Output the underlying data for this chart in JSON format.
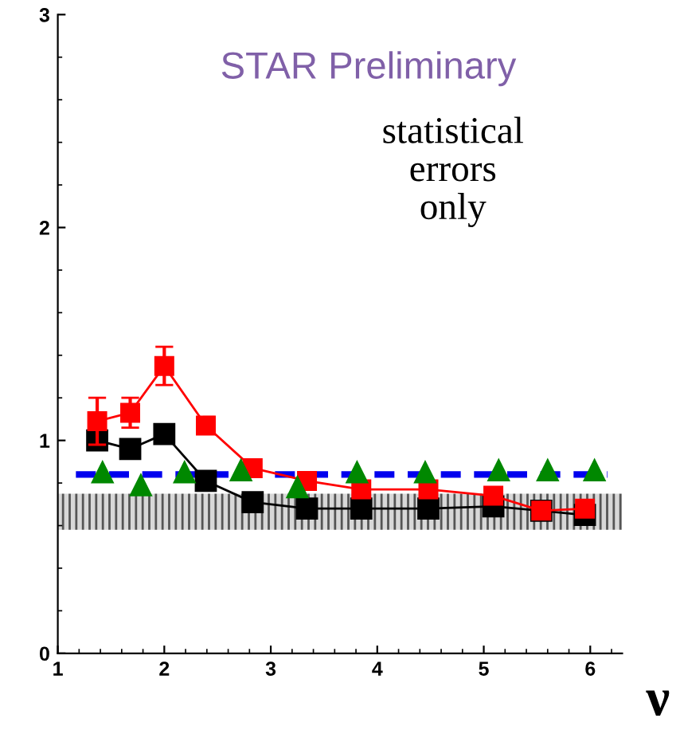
{
  "chart_data": {
    "type": "scatter",
    "title": "STAR Preliminary",
    "xlabel": "ν",
    "annotations": [
      "statistical\nerrors\nonly"
    ],
    "xlim": [
      1,
      6.3
    ],
    "ylim": [
      0,
      3
    ],
    "xticks": [
      1,
      2,
      3,
      4,
      5,
      6
    ],
    "yticks": [
      0,
      1,
      2,
      3
    ],
    "grid": false,
    "bands": [
      {
        "axis": "y",
        "from": 0.58,
        "to": 0.75,
        "color": "#555555"
      }
    ],
    "series": [
      {
        "type": "line",
        "color": "#0000ee",
        "line_style": "dashed",
        "marker": "none",
        "x": [
          1.17,
          6.16
        ],
        "values": [
          0.84,
          0.84
        ]
      },
      {
        "type": "line",
        "color": "#000000",
        "marker": "square",
        "line_style": "solid",
        "x": [
          1.37,
          1.68,
          2.0,
          2.39,
          2.83,
          3.34,
          3.85,
          4.48,
          5.09,
          5.54,
          5.95
        ],
        "values": [
          1.0,
          0.96,
          1.03,
          0.81,
          0.71,
          0.68,
          0.68,
          0.68,
          0.69,
          0.67,
          0.65
        ]
      },
      {
        "type": "line",
        "color": "#ff0000",
        "marker": "square",
        "line_style": "solid",
        "x": [
          1.37,
          1.68,
          2.0,
          2.39,
          2.83,
          3.34,
          3.85,
          4.48,
          5.09,
          5.54,
          5.95
        ],
        "values": [
          1.09,
          1.13,
          1.35,
          1.07,
          0.87,
          0.81,
          0.77,
          0.77,
          0.74,
          0.67,
          0.68
        ],
        "errors": [
          0.11,
          0.07,
          0.09,
          0.04,
          null,
          null,
          null,
          null,
          null,
          null,
          null
        ]
      },
      {
        "color": "#008800",
        "marker": "triangle",
        "x": [
          1.42,
          1.78,
          2.19,
          2.72,
          3.25,
          3.81,
          4.45,
          5.14,
          5.6,
          6.04
        ],
        "values": [
          0.85,
          0.79,
          0.85,
          0.86,
          0.78,
          0.85,
          0.85,
          0.86,
          0.86,
          0.86
        ]
      }
    ]
  }
}
